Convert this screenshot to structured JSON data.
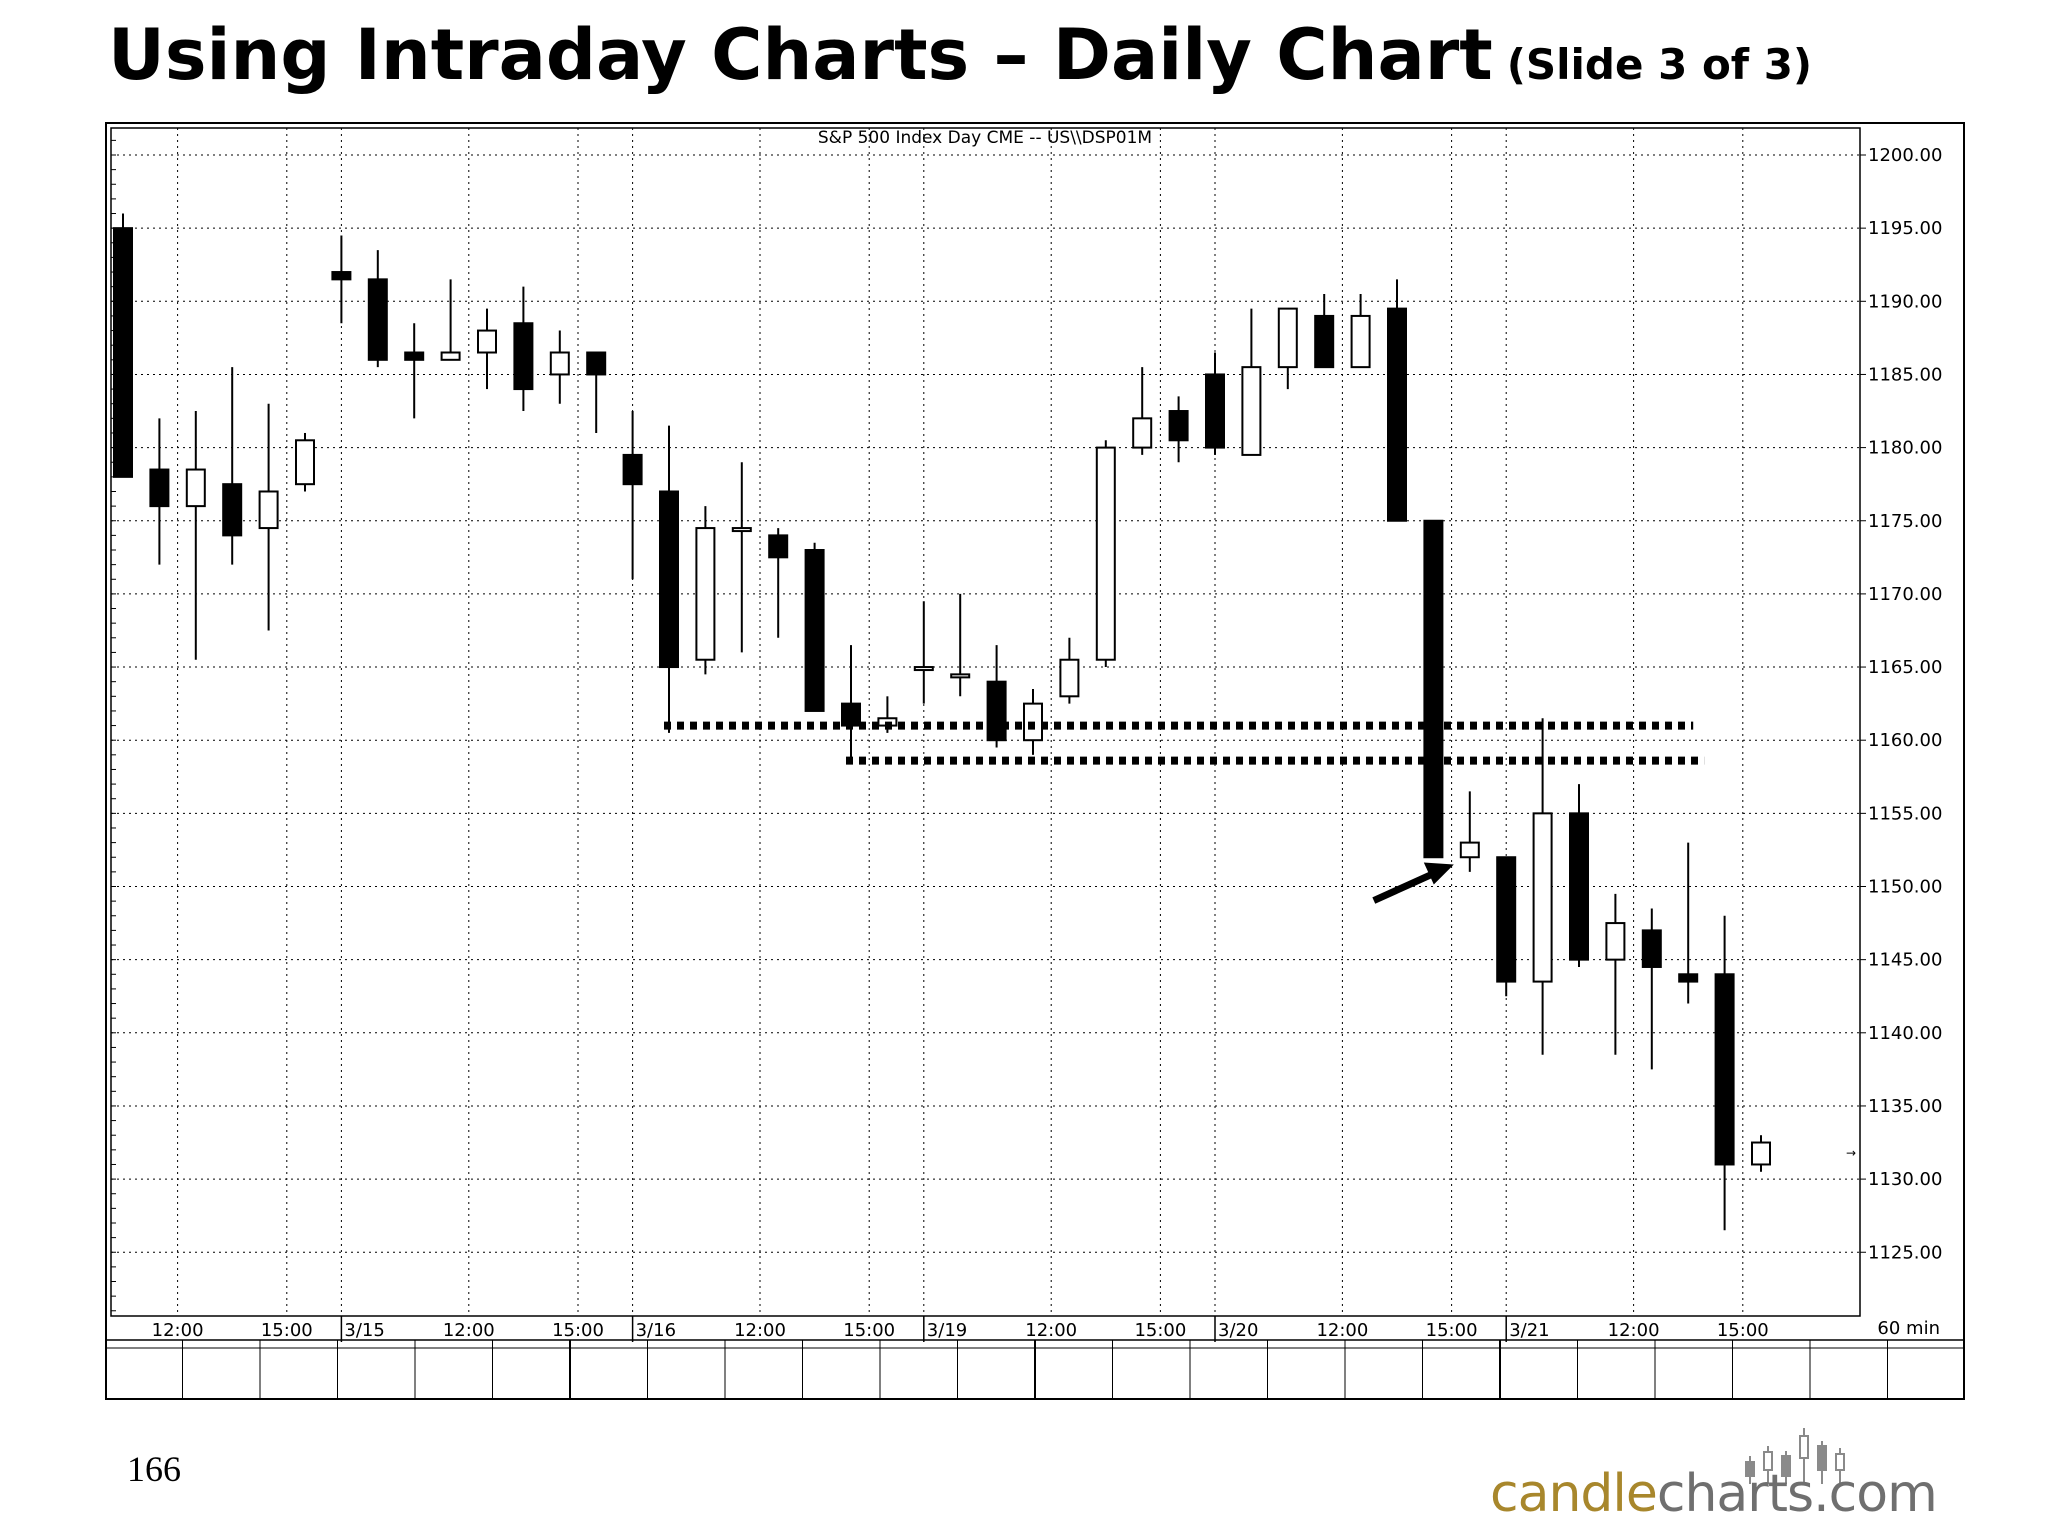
{
  "slide": {
    "title": "Using Intraday Charts – Daily Chart",
    "subtitle": "(Slide 3 of 3)",
    "page_number": "166",
    "logo": {
      "part1": "candle",
      "part2": "charts.com"
    }
  },
  "colors": {
    "background": "#ffffff",
    "bear_candle": "#000000",
    "bull_candle": "#ffffff",
    "grid": "#000000",
    "logo_gold": "#a8872c",
    "logo_gray": "#6f6f6f"
  },
  "chart_data": {
    "type": "candlestick",
    "title": "S&P 500 Index Day CME -- US\\\\DSP01M",
    "interval_label": "60 min",
    "ylim": [
      1121,
      1201
    ],
    "y_ticks": [
      "1200.00",
      "1195.00",
      "1190.00",
      "1185.00",
      "1180.00",
      "1175.00",
      "1170.00",
      "1165.00",
      "1160.00",
      "1155.00",
      "1150.00",
      "1145.00",
      "1140.00",
      "1135.00",
      "1130.00",
      "1125.00"
    ],
    "x_ticks": [
      {
        "bar": 1.5,
        "label": "12:00"
      },
      {
        "bar": 4.5,
        "label": "15:00"
      },
      {
        "bar": 6.0,
        "label": "3/15"
      },
      {
        "bar": 9.5,
        "label": "12:00"
      },
      {
        "bar": 12.5,
        "label": "15:00"
      },
      {
        "bar": 14.0,
        "label": "3/16"
      },
      {
        "bar": 17.5,
        "label": "12:00"
      },
      {
        "bar": 20.5,
        "label": "15:00"
      },
      {
        "bar": 22.0,
        "label": "3/19"
      },
      {
        "bar": 25.5,
        "label": "12:00"
      },
      {
        "bar": 28.5,
        "label": "15:00"
      },
      {
        "bar": 30.0,
        "label": "3/20"
      },
      {
        "bar": 33.5,
        "label": "12:00"
      },
      {
        "bar": 36.5,
        "label": "15:00"
      },
      {
        "bar": 38.0,
        "label": "3/21"
      },
      {
        "bar": 41.5,
        "label": "12:00"
      },
      {
        "bar": 44.5,
        "label": "15:00"
      }
    ],
    "candles": [
      {
        "o": 1195.0,
        "h": 1196.0,
        "l": 1178.0,
        "c": 1178.0
      },
      {
        "o": 1178.5,
        "h": 1182.0,
        "l": 1172.0,
        "c": 1176.0
      },
      {
        "o": 1176.0,
        "h": 1182.5,
        "l": 1165.5,
        "c": 1178.5
      },
      {
        "o": 1177.5,
        "h": 1185.5,
        "l": 1172.0,
        "c": 1174.0
      },
      {
        "o": 1174.5,
        "h": 1183.0,
        "l": 1167.5,
        "c": 1177.0
      },
      {
        "o": 1177.5,
        "h": 1181.0,
        "l": 1177.0,
        "c": 1180.5
      },
      {
        "o": 1192.0,
        "h": 1194.5,
        "l": 1188.5,
        "c": 1191.5
      },
      {
        "o": 1191.5,
        "h": 1193.5,
        "l": 1185.5,
        "c": 1186.0
      },
      {
        "o": 1186.5,
        "h": 1188.5,
        "l": 1182.0,
        "c": 1186.0
      },
      {
        "o": 1186.0,
        "h": 1191.5,
        "l": 1186.0,
        "c": 1186.5
      },
      {
        "o": 1186.5,
        "h": 1189.5,
        "l": 1184.0,
        "c": 1188.0
      },
      {
        "o": 1188.5,
        "h": 1191.0,
        "l": 1182.5,
        "c": 1184.0
      },
      {
        "o": 1185.0,
        "h": 1188.0,
        "l": 1183.0,
        "c": 1186.5
      },
      {
        "o": 1186.5,
        "h": 1186.5,
        "l": 1181.0,
        "c": 1185.0
      },
      {
        "o": 1179.5,
        "h": 1182.5,
        "l": 1171.0,
        "c": 1177.5
      },
      {
        "o": 1177.0,
        "h": 1181.5,
        "l": 1160.5,
        "c": 1165.0
      },
      {
        "o": 1165.5,
        "h": 1176.0,
        "l": 1164.5,
        "c": 1174.5
      },
      {
        "o": 1174.5,
        "h": 1179.0,
        "l": 1166.0,
        "c": 1174.5
      },
      {
        "o": 1174.0,
        "h": 1174.5,
        "l": 1167.0,
        "c": 1172.5
      },
      {
        "o": 1173.0,
        "h": 1173.5,
        "l": 1162.0,
        "c": 1162.0
      },
      {
        "o": 1162.5,
        "h": 1166.5,
        "l": 1158.5,
        "c": 1161.0
      },
      {
        "o": 1161.0,
        "h": 1163.0,
        "l": 1160.5,
        "c": 1161.5
      },
      {
        "o": 1165.0,
        "h": 1169.5,
        "l": 1162.5,
        "c": 1165.0
      },
      {
        "o": 1164.5,
        "h": 1170.0,
        "l": 1163.0,
        "c": 1164.5
      },
      {
        "o": 1164.0,
        "h": 1166.5,
        "l": 1159.5,
        "c": 1160.0
      },
      {
        "o": 1160.0,
        "h": 1163.5,
        "l": 1159.0,
        "c": 1162.5
      },
      {
        "o": 1163.0,
        "h": 1167.0,
        "l": 1162.5,
        "c": 1165.5
      },
      {
        "o": 1165.5,
        "h": 1180.5,
        "l": 1165.0,
        "c": 1180.0
      },
      {
        "o": 1180.0,
        "h": 1185.5,
        "l": 1179.5,
        "c": 1182.0
      },
      {
        "o": 1182.5,
        "h": 1183.5,
        "l": 1179.0,
        "c": 1180.5
      },
      {
        "o": 1185.0,
        "h": 1186.5,
        "l": 1179.5,
        "c": 1180.0
      },
      {
        "o": 1179.5,
        "h": 1189.5,
        "l": 1179.5,
        "c": 1185.5
      },
      {
        "o": 1185.5,
        "h": 1189.5,
        "l": 1184.0,
        "c": 1189.5
      },
      {
        "o": 1189.0,
        "h": 1190.5,
        "l": 1185.5,
        "c": 1185.5
      },
      {
        "o": 1185.5,
        "h": 1190.5,
        "l": 1185.5,
        "c": 1189.0
      },
      {
        "o": 1189.5,
        "h": 1191.5,
        "l": 1175.0,
        "c": 1175.0
      },
      {
        "o": 1175.0,
        "h": 1175.0,
        "l": 1152.0,
        "c": 1152.0
      },
      {
        "o": 1152.0,
        "h": 1156.5,
        "l": 1151.0,
        "c": 1153.0
      },
      {
        "o": 1152.0,
        "h": 1152.0,
        "l": 1142.5,
        "c": 1143.5
      },
      {
        "o": 1143.5,
        "h": 1161.5,
        "l": 1138.5,
        "c": 1155.0
      },
      {
        "o": 1155.0,
        "h": 1157.0,
        "l": 1144.5,
        "c": 1145.0
      },
      {
        "o": 1145.0,
        "h": 1149.5,
        "l": 1138.5,
        "c": 1147.5
      },
      {
        "o": 1147.0,
        "h": 1148.5,
        "l": 1137.5,
        "c": 1144.5
      },
      {
        "o": 1144.0,
        "h": 1153.0,
        "l": 1142.0,
        "c": 1143.5
      },
      {
        "o": 1144.0,
        "h": 1148.0,
        "l": 1126.5,
        "c": 1131.0
      },
      {
        "o": 1131.0,
        "h": 1133.0,
        "l": 1130.5,
        "c": 1132.5
      }
    ],
    "support_lines": [
      {
        "y": 1161.0,
        "from_bar": 15,
        "to_bar": 43,
        "style": "dotted"
      },
      {
        "y": 1158.6,
        "from_bar": 20,
        "to_bar": 43.3,
        "style": "dotted"
      }
    ],
    "annotations": [
      {
        "type": "arrow",
        "points_to_bar": 37,
        "at_value": 1151.5
      }
    ],
    "grid": true
  }
}
